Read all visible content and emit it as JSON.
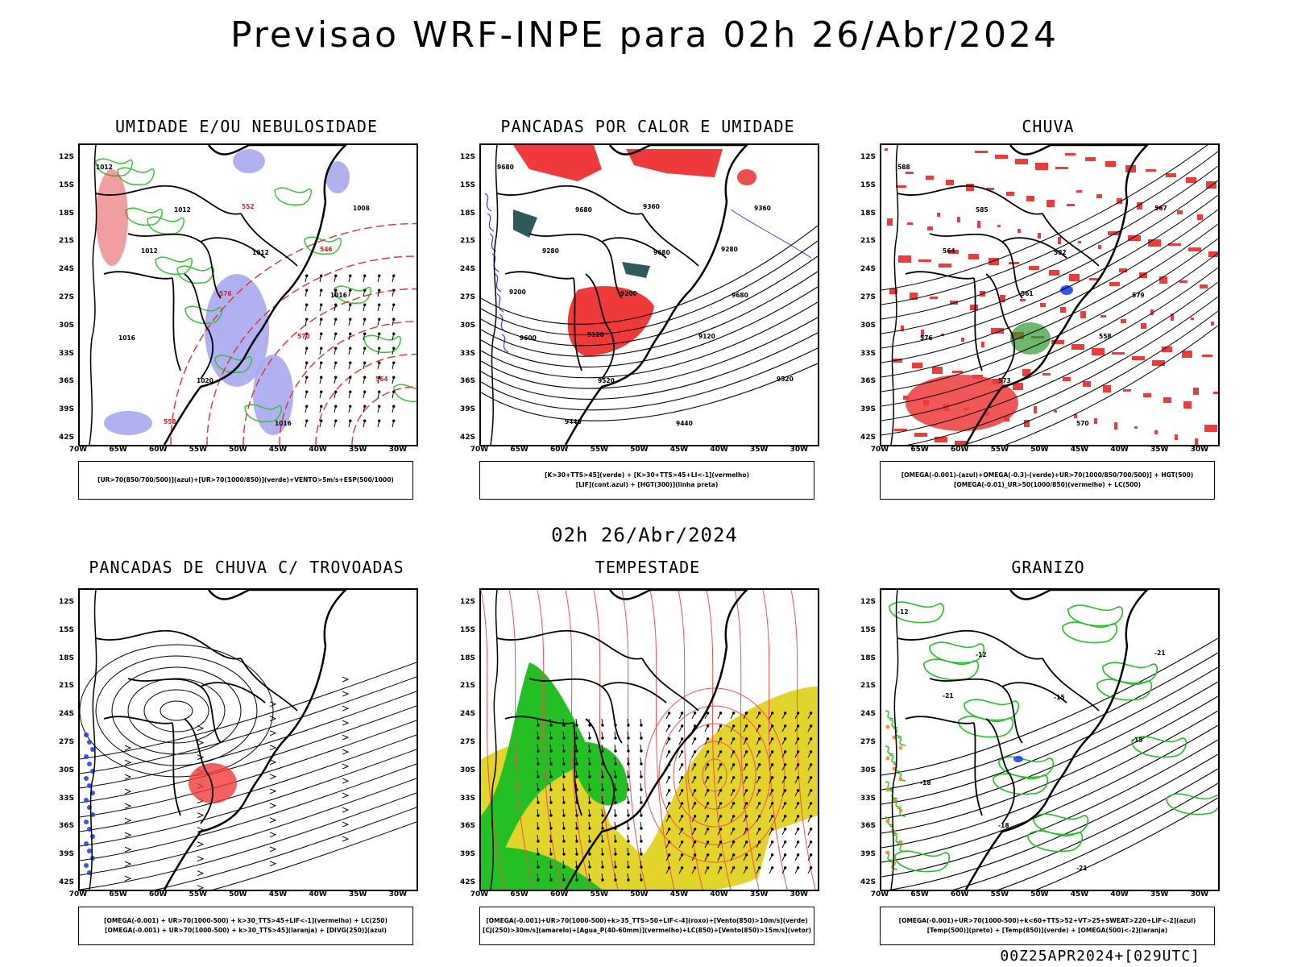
{
  "main_title": "Previsao WRF-INPE  para 02h 26/Abr/2024",
  "mid_title": "02h 26/Abr/2024",
  "footer": "00Z25APR2024+[029UTC]",
  "lat_labels": [
    "12S",
    "15S",
    "18S",
    "21S",
    "24S",
    "27S",
    "30S",
    "33S",
    "36S",
    "39S",
    "42S"
  ],
  "lon_labels": [
    "70W",
    "65W",
    "60W",
    "55W",
    "50W",
    "45W",
    "40W",
    "35W",
    "30W"
  ],
  "panels": [
    {
      "id": "umidade",
      "title": "UMIDADE E/OU NEBULOSIDADE",
      "legend": [
        "[UR>70(850/700/500)](azul)+[UR>70(1000/850)](verde)+VENTO>5m/s+ESP(500/1000)"
      ],
      "contour_labels": [
        "1012",
        "1012",
        "1012",
        "1016",
        "1016",
        "1020",
        "1016",
        "1008",
        "1012",
        "576",
        "570",
        "564",
        "558",
        "552",
        "546"
      ]
    },
    {
      "id": "pancadas-calor",
      "title": "PANCADAS POR CALOR E UMIDADE",
      "legend": [
        "[K>30+TTS>45](verde) + [K>30+TTS>45+LI<-1](vermelho)",
        "[LIF](cont.azul) + [HGT(300)](linha preta)"
      ],
      "contour_labels": [
        "9680",
        "9680",
        "9680",
        "9680",
        "9600",
        "9520",
        "9440",
        "9360",
        "9280",
        "9200",
        "9120",
        "9520",
        "9440",
        "9360",
        "9280",
        "9200",
        "9120"
      ]
    },
    {
      "id": "chuva",
      "title": "CHUVA",
      "legend": [
        "[OMEGA(-0.001)-(azul)+OMEGA(-0.3)-(verde)+UR>70(1000/850/700/500)] + HGT(500)",
        "[OMEGA(-0.01)_UR>50(1000/850)(vermelho) + LC(500)"
      ],
      "contour_labels": [
        "588",
        "585",
        "582",
        "579",
        "576",
        "573",
        "570",
        "567",
        "564",
        "561",
        "558"
      ]
    },
    {
      "id": "pancadas-trovoadas",
      "title": "PANCADAS DE CHUVA C/ TROVOADAS",
      "legend": [
        "[OMEGA(-0.001) + UR>70(1000-500) + k>30_TTS>45+LIF<-1](vermelho) + LC(250)",
        "[OMEGA(-0.001) + UR>70(1000-500) + k>30_TTS>45](laranja) + [DIVG(250)](azul)"
      ],
      "contour_labels": []
    },
    {
      "id": "tempestade",
      "title": "TEMPESTADE",
      "legend": [
        "[OMEGA(-0.001)+UR>70(1000-500)+k>35_TTS>50+LIF<-4](roxo)+[Vento(850)>10m/s](verde)",
        "[CJ(250)>30m/s](amarelo)+[Agua_P(40-60mm)](vermelho)+LC(850)+[Vento(850)>15m/s](vetor)"
      ],
      "contour_labels": []
    },
    {
      "id": "granizo",
      "title": "GRANIZO",
      "legend": [
        "[OMEGA(-0.001)+UR>70(1000-500)+k<60+TTS>52+VT>25+SWEAT>220+LIF<-2](azul)",
        "[Temp(500)](preto) + [Temp(850)](verde) + [OMEGA(500)<-2](laranja)"
      ],
      "contour_labels": [
        "-12",
        "-12",
        "-15",
        "-15",
        "-18",
        "-18",
        "-21",
        "-21",
        "-21"
      ]
    }
  ]
}
